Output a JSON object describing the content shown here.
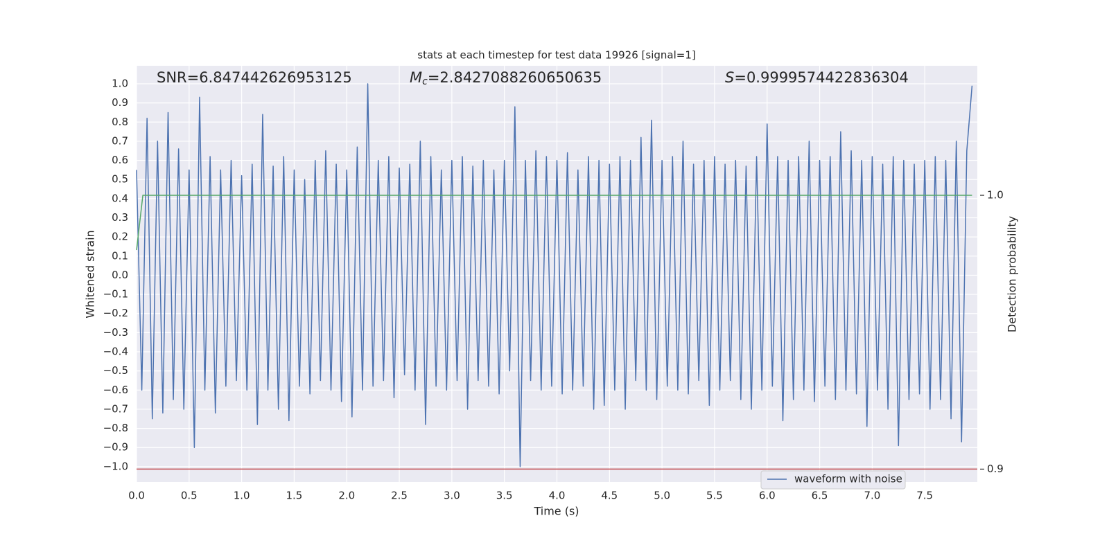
{
  "chart_data": {
    "type": "line",
    "title": "stats at each timestep for test data 19926 [signal=1]",
    "xlabel": "Time (s)",
    "ylabel": "Whitened strain",
    "y2label": "Detection probability",
    "annotations": [
      {
        "text": "SNR=6.847442626953125"
      },
      {
        "italic": "M",
        "sub": "c",
        "text": "=2.8427088260650635"
      },
      {
        "italic": "S",
        "text": "=0.9999574422836304"
      }
    ],
    "xlim": [
      0,
      8.0
    ],
    "ylim": [
      -1.08,
      1.094
    ],
    "y2lim": [
      0.8953,
      1.0473
    ],
    "xticks": [
      {
        "value": 0,
        "label": "0.0"
      },
      0.5,
      {
        "value": 1,
        "label": "1.0"
      },
      1.5,
      {
        "value": 2,
        "label": "2.0"
      },
      2.5,
      {
        "value": 3,
        "label": "3.0"
      },
      3.5,
      {
        "value": 4,
        "label": "4.0"
      },
      4.5,
      {
        "value": 5,
        "label": "5.0"
      },
      5.5,
      {
        "value": 6,
        "label": "6.0"
      },
      6.5,
      {
        "value": 7,
        "label": "7.0"
      },
      7.5
    ],
    "yticks": [
      {
        "value": -1,
        "label": "−1.0"
      },
      {
        "value": -0.9,
        "label": "−0.9"
      },
      {
        "value": -0.8,
        "label": "−0.8"
      },
      {
        "value": -0.7,
        "label": "−0.7"
      },
      {
        "value": -0.6,
        "label": "−0.6"
      },
      {
        "value": -0.5,
        "label": "−0.5"
      },
      {
        "value": -0.4,
        "label": "−0.4"
      },
      {
        "value": -0.3,
        "label": "−0.3"
      },
      {
        "value": -0.2,
        "label": "−0.2"
      },
      {
        "value": -0.1,
        "label": "−0.1"
      },
      {
        "value": 0,
        "label": "0.0"
      },
      0.1,
      0.2,
      0.3,
      0.4,
      0.5,
      0.6,
      0.7,
      0.8,
      0.9,
      {
        "value": 1,
        "label": "1.0"
      }
    ],
    "y2ticks": [
      0.9,
      {
        "value": 1,
        "label": "1.0"
      }
    ],
    "grid": true,
    "legend": "lower right",
    "series": [
      {
        "name": "waveform with noise",
        "color": "#4c72b0",
        "x": [
          0,
          0.05,
          0.1,
          0.15,
          0.2,
          0.25,
          0.3,
          0.35,
          0.4,
          0.45,
          0.5,
          0.55,
          0.6,
          0.65,
          0.7,
          0.75,
          0.8,
          0.85,
          0.9,
          0.95,
          1,
          1.05,
          1.1,
          1.15,
          1.2,
          1.25,
          1.3,
          1.35,
          1.4,
          1.45,
          1.5,
          1.55,
          1.6,
          1.65,
          1.7,
          1.75,
          1.8,
          1.85,
          1.9,
          1.95,
          2,
          2.05,
          2.1,
          2.15,
          2.2,
          2.25,
          2.3,
          2.35,
          2.4,
          2.45,
          2.5,
          2.55,
          2.6,
          2.65,
          2.7,
          2.75,
          2.8,
          2.85,
          2.9,
          2.95,
          3,
          3.05,
          3.1,
          3.15,
          3.2,
          3.25,
          3.3,
          3.35,
          3.4,
          3.45,
          3.5,
          3.55,
          3.6,
          3.65,
          3.7,
          3.75,
          3.8,
          3.85,
          3.9,
          3.95,
          4,
          4.05,
          4.1,
          4.15,
          4.2,
          4.25,
          4.3,
          4.35,
          4.4,
          4.45,
          4.5,
          4.55,
          4.6,
          4.65,
          4.7,
          4.75,
          4.8,
          4.85,
          4.9,
          4.95,
          5,
          5.05,
          5.1,
          5.15,
          5.2,
          5.25,
          5.3,
          5.35,
          5.4,
          5.45,
          5.5,
          5.55,
          5.6,
          5.65,
          5.7,
          5.75,
          5.8,
          5.85,
          5.9,
          5.95,
          6,
          6.05,
          6.1,
          6.15,
          6.2,
          6.25,
          6.3,
          6.35,
          6.4,
          6.45,
          6.5,
          6.55,
          6.6,
          6.65,
          6.7,
          6.75,
          6.8,
          6.85,
          6.9,
          6.95,
          7,
          7.05,
          7.1,
          7.15,
          7.2,
          7.25,
          7.3,
          7.35,
          7.4,
          7.45,
          7.5,
          7.55,
          7.6,
          7.65,
          7.7,
          7.75,
          7.8,
          7.85,
          7.9,
          7.95
        ],
        "values": [
          0.55,
          -0.6,
          0.82,
          -0.75,
          0.7,
          -0.72,
          0.85,
          -0.65,
          0.66,
          -0.7,
          0.55,
          -0.9,
          0.93,
          -0.6,
          0.62,
          -0.72,
          0.55,
          -0.58,
          0.6,
          -0.55,
          0.52,
          -0.6,
          0.58,
          -0.78,
          0.84,
          -0.6,
          0.57,
          -0.7,
          0.62,
          -0.76,
          0.55,
          -0.58,
          0.5,
          -0.62,
          0.6,
          -0.55,
          0.65,
          -0.6,
          0.58,
          -0.66,
          0.55,
          -0.74,
          0.67,
          -0.6,
          1.0,
          -0.58,
          0.6,
          -0.55,
          0.62,
          -0.64,
          0.56,
          -0.52,
          0.58,
          -0.6,
          0.7,
          -0.78,
          0.62,
          -0.58,
          0.55,
          -0.6,
          0.6,
          -0.55,
          0.62,
          -0.7,
          0.57,
          -0.55,
          0.6,
          -0.58,
          0.55,
          -0.62,
          0.6,
          -0.5,
          0.88,
          -1.0,
          0.6,
          -0.55,
          0.65,
          -0.6,
          0.62,
          -0.58,
          0.6,
          -0.62,
          0.64,
          -0.6,
          0.55,
          -0.58,
          0.62,
          -0.7,
          0.6,
          -0.68,
          0.58,
          -0.6,
          0.62,
          -0.7,
          0.6,
          -0.55,
          0.72,
          -0.6,
          0.81,
          -0.65,
          0.6,
          -0.58,
          0.62,
          -0.6,
          0.7,
          -0.62,
          0.58,
          -0.55,
          0.6,
          -0.68,
          0.62,
          -0.6,
          0.58,
          -0.55,
          0.6,
          -0.65,
          0.57,
          -0.7,
          0.62,
          -0.6,
          0.79,
          -0.58,
          0.62,
          -0.76,
          0.6,
          -0.65,
          0.62,
          -0.6,
          0.7,
          -0.66,
          0.6,
          -0.58,
          0.62,
          -0.65,
          0.75,
          -0.6,
          0.65,
          -0.62,
          0.6,
          -0.79,
          0.62,
          -0.6,
          0.58,
          -0.7,
          0.62,
          -0.89,
          0.6,
          -0.65,
          0.58,
          -0.62,
          0.6,
          -0.7,
          0.62,
          -0.65,
          0.6,
          -0.75,
          0.7,
          -0.87,
          0.65,
          0.99
        ]
      },
      {
        "color": "#55a868",
        "axis": "y2",
        "x": [
          0,
          0.06,
          7.95
        ],
        "values": [
          0.98,
          1.0,
          1.0
        ]
      },
      {
        "color": "#c44e52",
        "axis": "y2",
        "x": [
          0,
          8.0
        ],
        "values": [
          0.9,
          0.9
        ]
      }
    ]
  }
}
